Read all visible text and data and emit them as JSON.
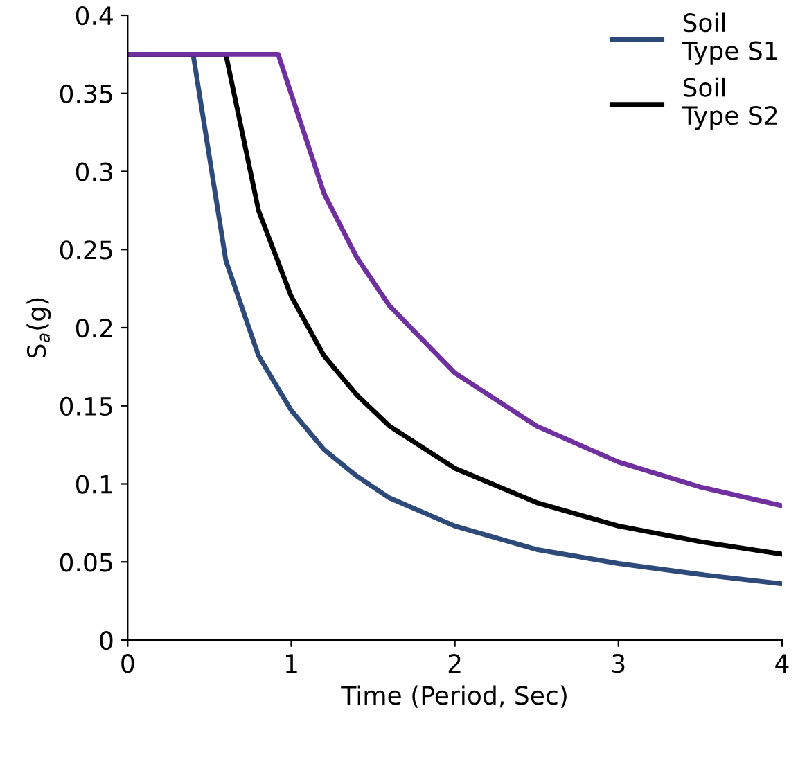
{
  "chart_data": {
    "type": "line",
    "xlabel": "Time (Period, Sec)",
    "ylabel": "S$_{a}$(g)",
    "xlim": [
      0,
      4
    ],
    "xticks": [
      0,
      1,
      2,
      3,
      4
    ],
    "ylim": [
      0,
      0.4
    ],
    "yticks": [
      0,
      0.05,
      0.1,
      0.15,
      0.2,
      0.25,
      0.3,
      0.35,
      0.4
    ],
    "grid": false,
    "legend": "top right",
    "marker": "none",
    "line_style": "solid",
    "series": [
      {
        "name": "Soil\nType S1",
        "color": "#2e4a7a",
        "x": [
          0,
          0.4,
          0.6,
          0.8,
          1,
          1.2,
          1.4,
          1.6,
          2,
          2.5,
          3,
          3.5,
          4
        ],
        "values": [
          0.375,
          0.375,
          0.243,
          0.182,
          0.147,
          0.122,
          0.105,
          0.091,
          0.073,
          0.058,
          0.049,
          0.042,
          0.036
        ]
      },
      {
        "name": "Soil\nType S2",
        "color": "#000000",
        "x": [
          0,
          0.6,
          0.8,
          1,
          1.2,
          1.4,
          1.6,
          2,
          2.5,
          3,
          3.5,
          4
        ],
        "values": [
          0.375,
          0.375,
          0.275,
          0.22,
          0.182,
          0.157,
          0.137,
          0.11,
          0.088,
          0.073,
          0.063,
          0.055
        ]
      },
      {
        "color": "#7030a0",
        "x": [
          0,
          0.92,
          1.2,
          1.4,
          1.6,
          2,
          2.5,
          3,
          3.5,
          4
        ],
        "values": [
          0.375,
          0.375,
          0.286,
          0.245,
          0.214,
          0.171,
          0.137,
          0.114,
          0.098,
          0.086
        ]
      }
    ]
  }
}
